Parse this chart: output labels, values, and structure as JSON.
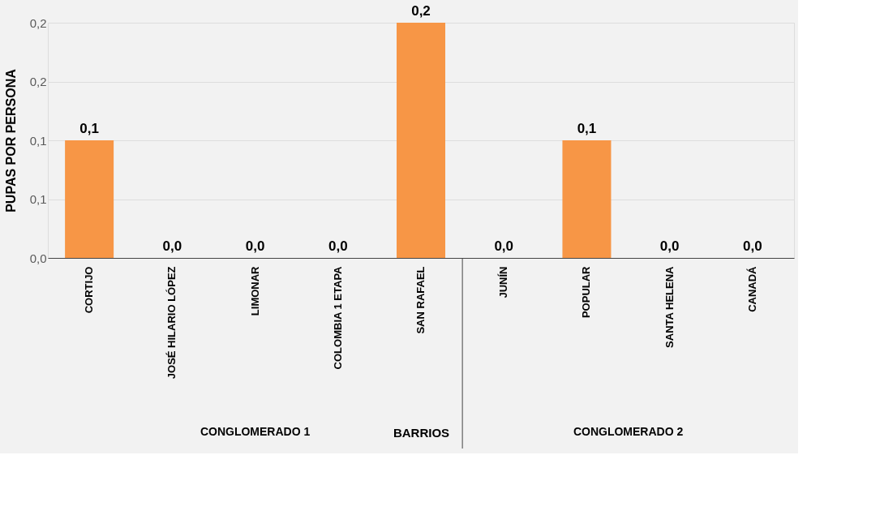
{
  "chart_data": {
    "type": "bar",
    "xlabel": "BARRIOS",
    "ylabel": "PUPAS POR PERSONA",
    "categories": [
      "CORTIJO",
      "JOSÉ HILARIO LÓPEZ",
      "LIMONAR",
      "COLOMBIA 1 ETAPA",
      "SAN RAFAEL",
      "JUNÍN",
      "POPULAR",
      "SANTA HELENA",
      "CANADÁ"
    ],
    "values": [
      0.1,
      0,
      0,
      0,
      0.2,
      0,
      0.1,
      0,
      0
    ],
    "value_labels": [
      "0,1",
      "0,0",
      "0,0",
      "0,0",
      "0,2",
      "0,0",
      "0,1",
      "0,0",
      "0,0"
    ],
    "color": "#f79646",
    "ylim": [
      0,
      0.2
    ],
    "yticks": [
      {
        "value": 0,
        "label": "0,0"
      },
      {
        "value": 0.05,
        "label": "0,1"
      },
      {
        "value": 0.1,
        "label": "0,1"
      },
      {
        "value": 0.15,
        "label": "0,2"
      },
      {
        "value": 0.2,
        "label": "0,2"
      }
    ],
    "annotations": [
      "CONGLOMERADO 1",
      "CONGLOMERADO 2"
    ],
    "grid": "y"
  }
}
